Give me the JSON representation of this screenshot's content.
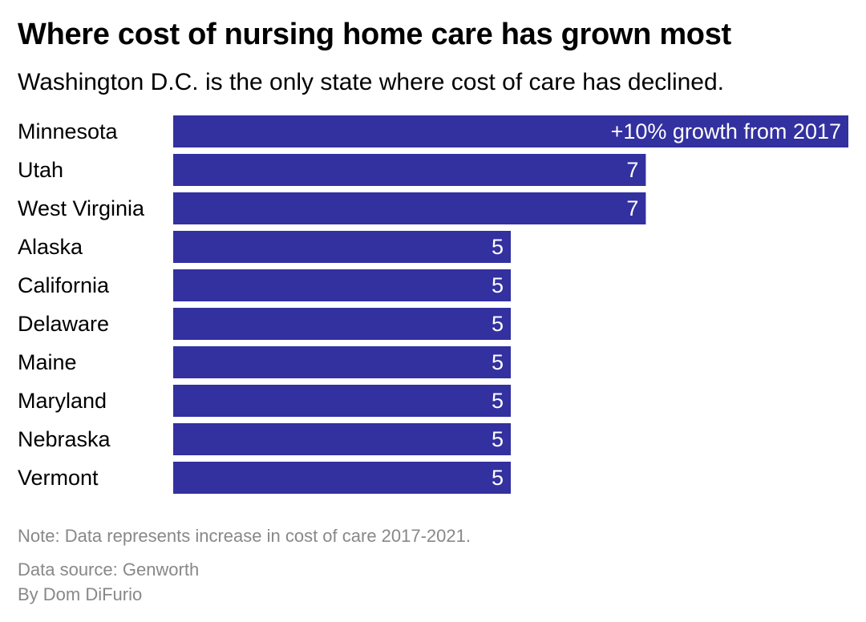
{
  "chart_data": {
    "type": "bar",
    "orientation": "horizontal",
    "title": "Where cost of nursing home care has grown most",
    "subtitle": "Washington D.C. is the only state where cost of care has declined.",
    "categories": [
      "Minnesota",
      "Utah",
      "West Virginia",
      "Alaska",
      "California",
      "Delaware",
      "Maine",
      "Maryland",
      "Nebraska",
      "Vermont"
    ],
    "values": [
      10,
      7,
      7,
      5,
      5,
      5,
      5,
      5,
      5,
      5
    ],
    "value_labels": [
      "+10% growth from 2017",
      "7",
      "7",
      "5",
      "5",
      "5",
      "5",
      "5",
      "5",
      "5"
    ],
    "xlim": [
      0,
      10
    ],
    "xlabel": "",
    "ylabel": "",
    "grid": false,
    "bar_color": "#3330a0",
    "label_color": "#ffffff"
  },
  "footer": {
    "note": "Note: Data represents increase in cost of care 2017-2021.",
    "source": "Data source: Genworth",
    "byline": "By Dom DiFurio"
  }
}
